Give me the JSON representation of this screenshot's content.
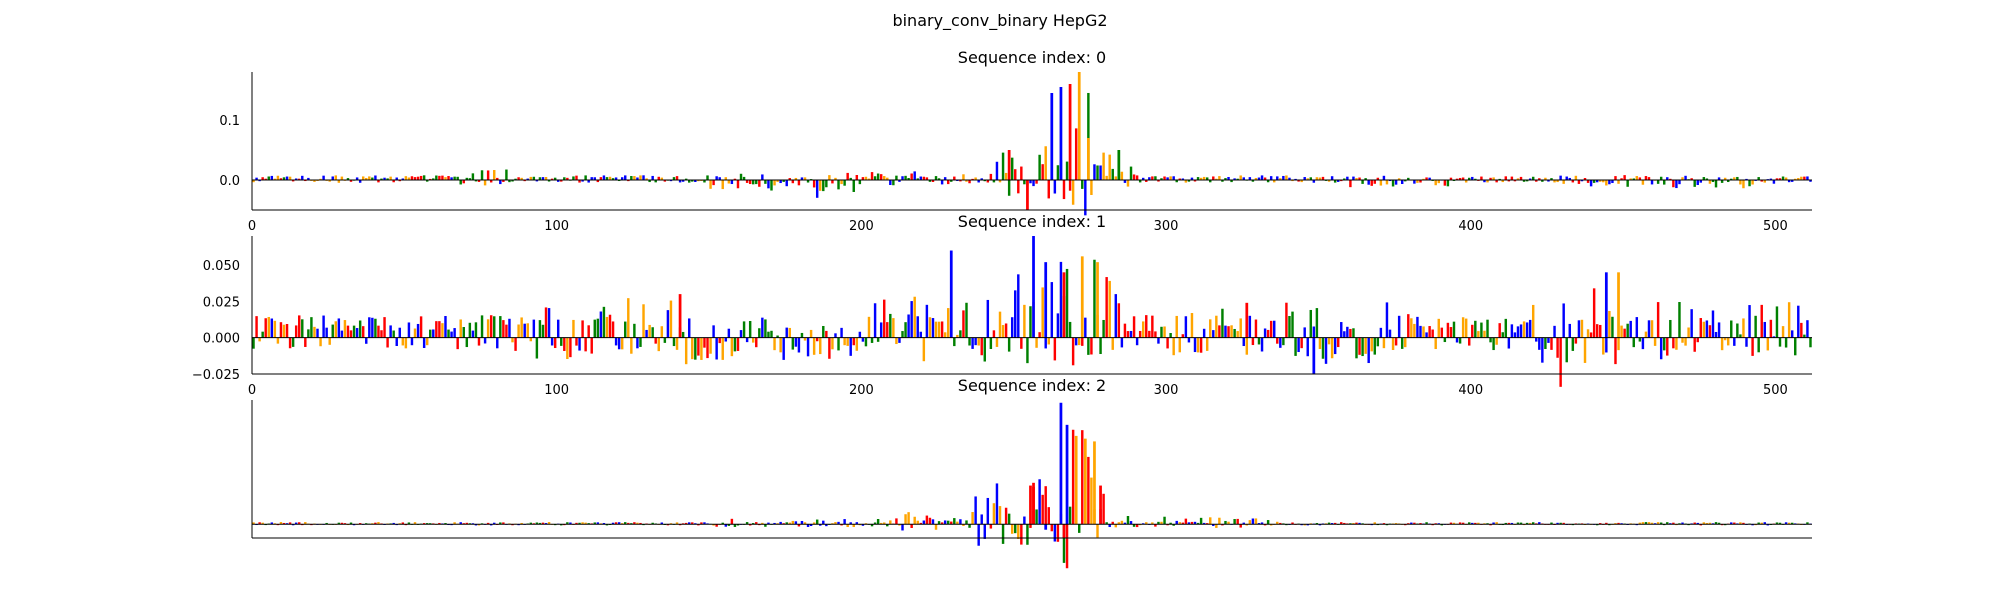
{
  "figure": {
    "suptitle": "binary_conv_binary HepG2"
  },
  "colors": {
    "A": "#008000",
    "C": "#0000ff",
    "G": "#ffa500",
    "T": "#ff0000",
    "axis": "#000000"
  },
  "chart_data": [
    {
      "type": "sequence-logo",
      "title": "Sequence index: 0",
      "xlim": [
        0,
        512
      ],
      "ylim": [
        -0.05,
        0.18
      ],
      "xticks": [
        0,
        100,
        200,
        300,
        400,
        500
      ],
      "yticks": [
        0.0,
        0.1
      ],
      "ytick_labels": [
        "0.0",
        "0.1"
      ],
      "show_yticks": true,
      "background_amplitude": 0.006,
      "motif_regions": [
        {
          "start": 68,
          "end": 84,
          "amp": 0.018
        },
        {
          "start": 150,
          "end": 200,
          "amp": -0.02
        },
        {
          "start": 185,
          "end": 195,
          "amp": -0.03
        },
        {
          "start": 200,
          "end": 245,
          "amp": 0.015
        },
        {
          "start": 244,
          "end": 262,
          "amp": 0.06
        },
        {
          "start": 262,
          "end": 282,
          "amp": 0.16
        },
        {
          "start": 282,
          "end": 292,
          "amp": 0.04
        },
        {
          "start": 360,
          "end": 400,
          "amp": -0.012
        },
        {
          "start": 430,
          "end": 500,
          "amp": -0.014
        }
      ],
      "peaks": [
        {
          "x": 248,
          "v": 0.05,
          "base": "T"
        },
        {
          "x": 254,
          "v": -0.05,
          "base": "T"
        },
        {
          "x": 262,
          "v": 0.145,
          "base": "C"
        },
        {
          "x": 265,
          "v": 0.155,
          "base": "C"
        },
        {
          "x": 268,
          "v": 0.16,
          "base": "T"
        },
        {
          "x": 271,
          "v": 0.18,
          "base": "G"
        },
        {
          "x": 274,
          "v": 0.07,
          "base": "G"
        },
        {
          "x": 284,
          "v": 0.05,
          "base": "A"
        }
      ]
    },
    {
      "type": "sequence-logo",
      "title": "Sequence index: 1",
      "xlim": [
        0,
        512
      ],
      "ylim": [
        -0.025,
        0.07
      ],
      "xticks": [
        0,
        100,
        200,
        300,
        400,
        500
      ],
      "yticks": [
        -0.025,
        0.0,
        0.025,
        0.05
      ],
      "ytick_labels": [
        "−0.025",
        "0.000",
        "0.025",
        "0.050"
      ],
      "show_yticks": true,
      "background_amplitude": 0.012,
      "motif_regions": [
        {
          "start": 90,
          "end": 150,
          "amp": 0.028
        },
        {
          "start": 140,
          "end": 160,
          "amp": -0.015
        },
        {
          "start": 170,
          "end": 200,
          "amp": -0.012
        },
        {
          "start": 200,
          "end": 270,
          "amp": 0.03
        },
        {
          "start": 250,
          "end": 285,
          "amp": 0.055
        },
        {
          "start": 300,
          "end": 330,
          "amp": 0.022
        },
        {
          "start": 330,
          "end": 380,
          "amp": 0.025
        },
        {
          "start": 350,
          "end": 370,
          "amp": -0.02
        },
        {
          "start": 420,
          "end": 450,
          "amp": 0.04
        },
        {
          "start": 428,
          "end": 440,
          "amp": -0.02
        },
        {
          "start": 460,
          "end": 512,
          "amp": 0.025
        }
      ],
      "peaks": [
        {
          "x": 140,
          "v": 0.03,
          "base": "T"
        },
        {
          "x": 229,
          "v": 0.06,
          "base": "C"
        },
        {
          "x": 256,
          "v": 0.07,
          "base": "C"
        },
        {
          "x": 260,
          "v": 0.052,
          "base": "C"
        },
        {
          "x": 266,
          "v": 0.045,
          "base": "T"
        },
        {
          "x": 272,
          "v": 0.056,
          "base": "G"
        },
        {
          "x": 277,
          "v": 0.052,
          "base": "G"
        },
        {
          "x": 326,
          "v": 0.024,
          "base": "T"
        },
        {
          "x": 348,
          "v": -0.025,
          "base": "C"
        },
        {
          "x": 444,
          "v": 0.045,
          "base": "C"
        },
        {
          "x": 448,
          "v": 0.045,
          "base": "G"
        }
      ]
    },
    {
      "type": "sequence-logo",
      "title": "Sequence index: 2",
      "xlim": [
        0,
        512
      ],
      "ylim": [
        -0.1,
        0.9
      ],
      "xticks": [],
      "yticks": [],
      "ytick_labels": [],
      "show_yticks": false,
      "background_amplitude": 0.012,
      "motif_regions": [
        {
          "start": 150,
          "end": 210,
          "amp": 0.04
        },
        {
          "start": 210,
          "end": 250,
          "amp": 0.12
        },
        {
          "start": 236,
          "end": 258,
          "amp": 0.3
        },
        {
          "start": 258,
          "end": 280,
          "amp": 0.7
        },
        {
          "start": 280,
          "end": 300,
          "amp": 0.06
        },
        {
          "start": 300,
          "end": 340,
          "amp": 0.05
        }
      ],
      "peaks": [
        {
          "x": 256,
          "v": 0.3,
          "base": "T"
        },
        {
          "x": 260,
          "v": -0.04,
          "base": "C"
        },
        {
          "x": 256,
          "v": 0.27,
          "base": "T"
        },
        {
          "x": 255,
          "v": 0.28,
          "base": "T"
        },
        {
          "x": 265,
          "v": 0.88,
          "base": "C"
        },
        {
          "x": 267,
          "v": 0.72,
          "base": "C"
        },
        {
          "x": 270,
          "v": 0.64,
          "base": "G"
        },
        {
          "x": 273,
          "v": 0.62,
          "base": "G"
        },
        {
          "x": 276,
          "v": 0.6,
          "base": "G"
        },
        {
          "x": 278,
          "v": 0.28,
          "base": "T"
        },
        {
          "x": 266,
          "v": -0.1,
          "base": "T"
        }
      ]
    }
  ]
}
